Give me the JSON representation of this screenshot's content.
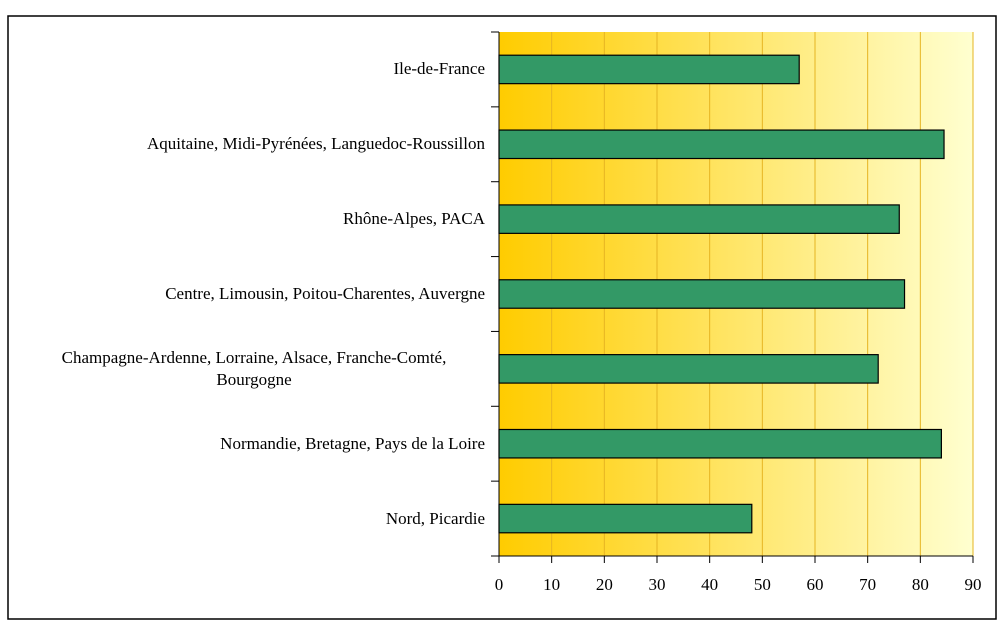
{
  "chart_data": {
    "type": "barh",
    "categories": [
      "Ile-de-France",
      "Aquitaine, Midi-Pyrénées, Languedoc-Roussillon",
      "Rhône-Alpes, PACA",
      "Centre, Limousin, Poitou-Charentes, Auvergne",
      "Champagne-Ardenne, Lorraine, Alsace, Franche-Comté, Bourgogne",
      "Normandie, Bretagne, Pays de la Loire",
      "Nord, Picardie"
    ],
    "values": [
      57,
      84.5,
      76,
      77,
      72,
      84,
      48
    ],
    "color": "#339966",
    "xlim": [
      0,
      90
    ],
    "xticks": [
      0,
      10,
      20,
      30,
      40,
      50,
      60,
      70,
      80,
      90
    ],
    "grid": true
  }
}
